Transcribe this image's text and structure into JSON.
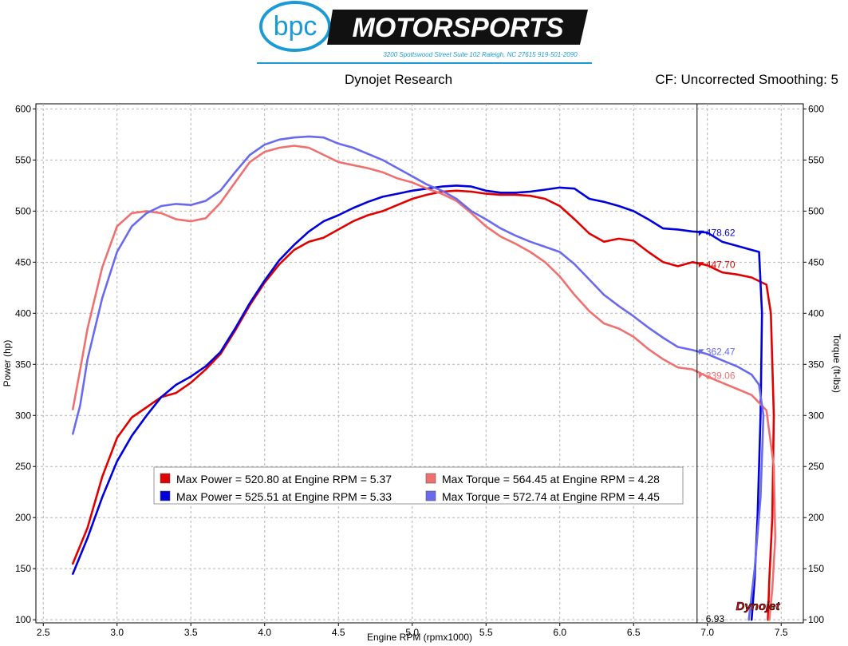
{
  "header": {
    "logo_text": "bpc",
    "brand": "MOTORSPORTS",
    "address": "3200 Spottswood Street Suite 102 Raleigh, NC 27615  919-501-2090",
    "center": "Dynojet Research",
    "right": "CF: Uncorrected Smoothing: 5",
    "watermark": "Dynojet"
  },
  "colors": {
    "power1": "#e00000",
    "power2": "#0000dd",
    "torque1": "#f07070",
    "torque2": "#6a6aee",
    "grid": "#b4b4b4",
    "plot_bg": "#ffffff"
  },
  "chart_data": {
    "type": "line",
    "xlabel": "Engine RPM (rpmx1000)",
    "ylabel": "Power (hp)",
    "y2label": "Torque (ft-lbs)",
    "xlim": [
      2.45,
      7.65
    ],
    "ylim": [
      97,
      605
    ],
    "y2lim": [
      97,
      605
    ],
    "x_ticks": [
      "2.5",
      "3.0",
      "3.5",
      "4.0",
      "4.5",
      "5.0",
      "5.5",
      "6.0",
      "6.5",
      "7.0",
      "7.5"
    ],
    "y_ticks": [
      "100",
      "150",
      "200",
      "250",
      "300",
      "350",
      "400",
      "450",
      "500",
      "550",
      "600"
    ],
    "y2_ticks": [
      "100",
      "150",
      "200",
      "250",
      "300",
      "350",
      "400",
      "450",
      "500",
      "550",
      "600"
    ],
    "grid": true,
    "cursor": {
      "x": 6.93,
      "label": "6.93"
    },
    "series": [
      {
        "axis": "power",
        "color_key": "power1",
        "x": [
          2.7,
          2.8,
          2.9,
          3.0,
          3.1,
          3.2,
          3.3,
          3.4,
          3.5,
          3.6,
          3.7,
          3.8,
          3.9,
          4.0,
          4.1,
          4.2,
          4.3,
          4.4,
          4.5,
          4.6,
          4.7,
          4.8,
          4.9,
          5.0,
          5.1,
          5.2,
          5.3,
          5.4,
          5.5,
          5.6,
          5.7,
          5.8,
          5.9,
          6.0,
          6.1,
          6.2,
          6.3,
          6.4,
          6.5,
          6.6,
          6.7,
          6.8,
          6.9,
          7.0,
          7.1,
          7.2,
          7.3,
          7.4,
          7.43,
          7.45,
          7.44,
          7.42,
          7.41
        ],
        "y": [
          155,
          190,
          240,
          278,
          298,
          308,
          318,
          322,
          332,
          345,
          360,
          383,
          408,
          430,
          448,
          462,
          470,
          474,
          482,
          490,
          496,
          500,
          506,
          512,
          516,
          519,
          520,
          519,
          517,
          516,
          516,
          515,
          512,
          505,
          492,
          478,
          470,
          473,
          471,
          460,
          450,
          446,
          450,
          447,
          440,
          438,
          435,
          428,
          400,
          300,
          200,
          140,
          100
        ]
      },
      {
        "axis": "power",
        "color_key": "power2",
        "x": [
          2.7,
          2.8,
          2.9,
          3.0,
          3.1,
          3.2,
          3.3,
          3.4,
          3.5,
          3.6,
          3.7,
          3.8,
          3.9,
          4.0,
          4.1,
          4.2,
          4.3,
          4.4,
          4.5,
          4.6,
          4.7,
          4.8,
          4.9,
          5.0,
          5.1,
          5.2,
          5.3,
          5.4,
          5.5,
          5.6,
          5.7,
          5.8,
          5.9,
          6.0,
          6.1,
          6.2,
          6.3,
          6.4,
          6.5,
          6.6,
          6.7,
          6.8,
          6.9,
          7.0,
          7.1,
          7.2,
          7.3,
          7.35,
          7.37,
          7.36,
          7.34,
          7.32,
          7.3
        ],
        "y": [
          145,
          180,
          220,
          255,
          280,
          300,
          318,
          330,
          338,
          348,
          362,
          385,
          410,
          432,
          452,
          467,
          480,
          490,
          496,
          503,
          509,
          514,
          517,
          520,
          522,
          524,
          525,
          524,
          520,
          518,
          518,
          519,
          521,
          523,
          522,
          512,
          509,
          505,
          500,
          492,
          483,
          482,
          480,
          479,
          470,
          466,
          462,
          460,
          400,
          300,
          200,
          140,
          100
        ]
      },
      {
        "axis": "torque",
        "color_key": "torque1",
        "x": [
          2.7,
          2.75,
          2.8,
          2.9,
          3.0,
          3.1,
          3.2,
          3.3,
          3.4,
          3.5,
          3.6,
          3.7,
          3.8,
          3.9,
          4.0,
          4.1,
          4.2,
          4.3,
          4.4,
          4.5,
          4.6,
          4.7,
          4.8,
          4.9,
          5.0,
          5.1,
          5.2,
          5.3,
          5.4,
          5.5,
          5.6,
          5.7,
          5.8,
          5.9,
          6.0,
          6.1,
          6.2,
          6.3,
          6.4,
          6.5,
          6.6,
          6.7,
          6.8,
          6.9,
          7.0,
          7.1,
          7.2,
          7.3,
          7.4,
          7.45,
          7.46,
          7.44,
          7.42
        ],
        "y": [
          306,
          345,
          385,
          445,
          485,
          498,
          500,
          498,
          492,
          490,
          493,
          508,
          528,
          548,
          558,
          562,
          564,
          562,
          555,
          548,
          545,
          542,
          538,
          532,
          528,
          522,
          517,
          510,
          498,
          485,
          475,
          468,
          460,
          450,
          436,
          418,
          402,
          390,
          385,
          377,
          365,
          355,
          347,
          345,
          338,
          332,
          326,
          320,
          305,
          250,
          180,
          130,
          100
        ]
      },
      {
        "axis": "torque",
        "color_key": "torque2",
        "x": [
          2.7,
          2.75,
          2.8,
          2.9,
          3.0,
          3.1,
          3.2,
          3.3,
          3.4,
          3.5,
          3.6,
          3.7,
          3.8,
          3.9,
          4.0,
          4.1,
          4.2,
          4.3,
          4.4,
          4.5,
          4.6,
          4.7,
          4.8,
          4.9,
          5.0,
          5.1,
          5.2,
          5.3,
          5.4,
          5.5,
          5.6,
          5.7,
          5.8,
          5.9,
          6.0,
          6.1,
          6.2,
          6.3,
          6.4,
          6.5,
          6.6,
          6.7,
          6.8,
          6.9,
          7.0,
          7.1,
          7.2,
          7.3,
          7.35,
          7.38,
          7.36,
          7.32,
          7.28
        ],
        "y": [
          282,
          310,
          355,
          415,
          460,
          485,
          498,
          505,
          507,
          506,
          510,
          520,
          538,
          555,
          565,
          570,
          572,
          573,
          572,
          566,
          562,
          556,
          550,
          542,
          534,
          526,
          520,
          512,
          500,
          492,
          483,
          476,
          470,
          465,
          460,
          448,
          433,
          418,
          407,
          397,
          386,
          376,
          367,
          364,
          360,
          354,
          348,
          340,
          330,
          300,
          220,
          150,
          100
        ]
      }
    ],
    "cursor_labels": [
      {
        "value": 478.62,
        "text": "478.62",
        "color_key": "power2"
      },
      {
        "value": 447.7,
        "text": "447.70",
        "color_key": "power1"
      },
      {
        "value": 362.47,
        "text": "362.47",
        "color_key": "torque2"
      },
      {
        "value": 339.06,
        "text": "339.06",
        "color_key": "torque1"
      }
    ],
    "legend": [
      {
        "text": "Max Power = 520.80 at Engine RPM = 5.37",
        "color_key": "power1"
      },
      {
        "text": "Max Torque = 564.45 at Engine RPM = 4.28",
        "color_key": "torque1"
      },
      {
        "text": "Max Power = 525.51 at Engine RPM = 5.33",
        "color_key": "power2"
      },
      {
        "text": "Max Torque = 572.74 at Engine RPM = 4.45",
        "color_key": "torque2"
      }
    ]
  }
}
